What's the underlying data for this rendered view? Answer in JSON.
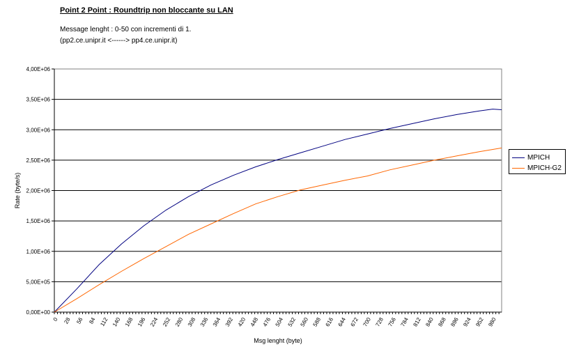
{
  "page": {
    "title": "Point 2 Point  :  Roundtrip non bloccante su LAN",
    "subtitle_line1": "Message lenght :  0-50 con incrementi di 1.",
    "subtitle_line2": "(pp2.ce.unipr.it    <------>  pp4.ce.unipr.it)"
  },
  "chart_data": {
    "type": "line",
    "title": "Point 2 Point  :  Roundtrip non bloccante su LAN",
    "xlabel": "Msg lenght (byte)",
    "ylabel": "Rate (byte/s)",
    "xlim": [
      0,
      1000
    ],
    "ylim": [
      0,
      4000000
    ],
    "x_tick_labels": [
      "0",
      "28",
      "56",
      "84",
      "112",
      "140",
      "168",
      "196",
      "224",
      "252",
      "280",
      "308",
      "336",
      "364",
      "392",
      "420",
      "448",
      "476",
      "504",
      "532",
      "560",
      "588",
      "616",
      "644",
      "672",
      "700",
      "728",
      "756",
      "784",
      "812",
      "840",
      "868",
      "896",
      "924",
      "952",
      "980"
    ],
    "x_tick_step": 28,
    "y_tick_labels": [
      "0,00E+00",
      "5,00E+05",
      "1,00E+06",
      "1,50E+06",
      "2,00E+06",
      "2,50E+06",
      "3,00E+06",
      "3,50E+06",
      "4,00E+06"
    ],
    "y_tick_values": [
      0,
      500000,
      1000000,
      1500000,
      2000000,
      2500000,
      3000000,
      3500000,
      4000000
    ],
    "grid": "horizontal",
    "legend_position": "right",
    "series": [
      {
        "name": "MPICH",
        "color": "#000080",
        "x": [
          0,
          50,
          100,
          150,
          200,
          250,
          300,
          350,
          400,
          450,
          500,
          550,
          600,
          650,
          700,
          750,
          800,
          850,
          900,
          950,
          980,
          1000
        ],
        "values": [
          0,
          380000,
          780000,
          1120000,
          1420000,
          1680000,
          1900000,
          2090000,
          2250000,
          2390000,
          2510000,
          2620000,
          2730000,
          2840000,
          2930000,
          3020000,
          3100000,
          3180000,
          3250000,
          3310000,
          3340000,
          3330000
        ]
      },
      {
        "name": "MPICH-G2",
        "color": "#FF6600",
        "x": [
          0,
          50,
          100,
          150,
          200,
          250,
          300,
          350,
          400,
          450,
          500,
          550,
          600,
          650,
          700,
          750,
          800,
          850,
          900,
          950,
          1000
        ],
        "values": [
          0,
          220000,
          450000,
          670000,
          880000,
          1080000,
          1280000,
          1450000,
          1620000,
          1780000,
          1900000,
          2010000,
          2090000,
          2170000,
          2240000,
          2340000,
          2420000,
          2500000,
          2570000,
          2640000,
          2700000
        ]
      }
    ]
  }
}
